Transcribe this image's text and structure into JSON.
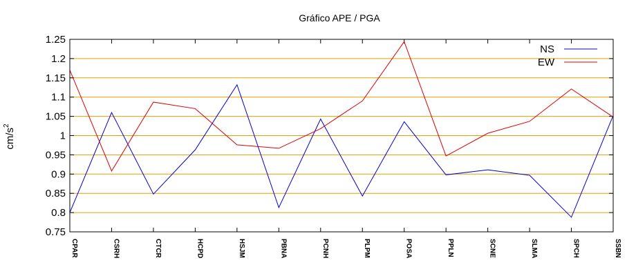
{
  "chart_data": {
    "type": "line",
    "title": "Gráfico  APE / PGA",
    "ylabel": "cm/s",
    "ylabel_superscript": "2",
    "xlabel": "",
    "ylim": [
      0.75,
      1.25
    ],
    "yticks": [
      0.75,
      0.8,
      0.85,
      0.9,
      0.95,
      1,
      1.05,
      1.1,
      1.15,
      1.2,
      1.25
    ],
    "ytick_labels": [
      "0.75",
      "0.8",
      "0.85",
      "0.9",
      "0.95",
      "1",
      "1.05",
      "1.1",
      "1.15",
      "1.2",
      "1.25"
    ],
    "grid": "horizontal",
    "grid_color": "#e0a000",
    "legend_position": "top-right",
    "categories": [
      "CPAR",
      "CSRH",
      "CTCR",
      "HCPD",
      "HSJM",
      "PBNA",
      "PCNH",
      "PLPM",
      "POSA",
      "PPLN",
      "SCNE",
      "SLMA",
      "SPCH",
      "SSBN"
    ],
    "series": [
      {
        "name": "NS",
        "color": "#0000cc",
        "values": [
          0.8,
          1.06,
          0.848,
          0.963,
          1.132,
          0.813,
          1.043,
          0.843,
          1.036,
          0.898,
          0.911,
          0.897,
          0.788,
          1.052
        ]
      },
      {
        "name": "EW",
        "color": "#dd0000",
        "values": [
          1.17,
          0.908,
          1.087,
          1.07,
          0.976,
          0.967,
          1.018,
          1.09,
          1.244,
          0.947,
          1.006,
          1.037,
          1.121,
          1.048
        ]
      }
    ]
  }
}
